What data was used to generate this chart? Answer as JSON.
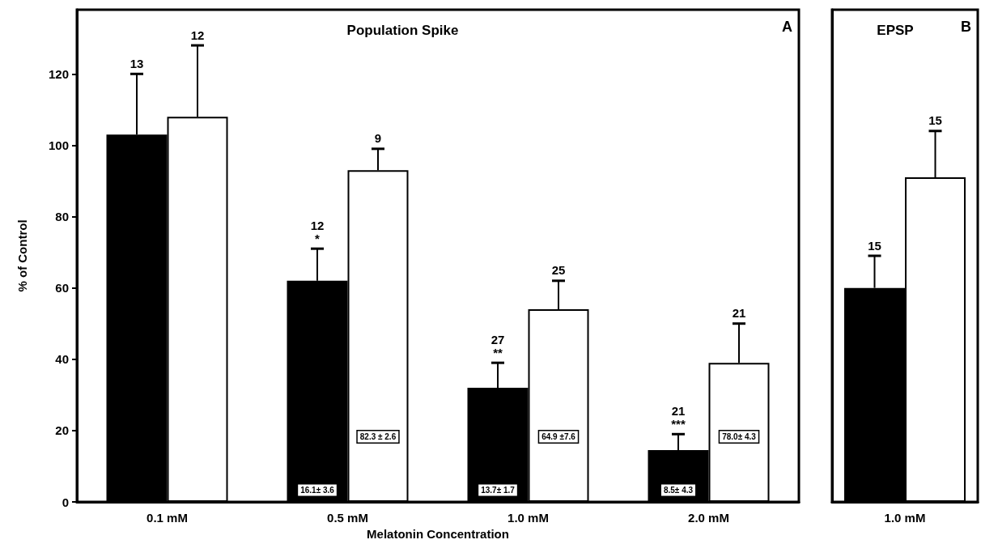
{
  "chart_data": [
    {
      "type": "bar",
      "title": "Population Spike",
      "xlabel": "Melatonin Concentration",
      "ylabel": "% of Control",
      "categories": [
        "0.1 mM",
        "0.5 mM",
        "1.0 mM",
        "2.0 mM"
      ],
      "series": [
        {
          "color": "#000000",
          "values": [
            103,
            62,
            32,
            14.5
          ],
          "errors": [
            [
              103,
              120
            ],
            [
              62,
              71
            ],
            [
              32,
              39
            ],
            [
              14.5,
              19
            ]
          ]
        },
        {
          "color": "#ffffff",
          "values": [
            108,
            93,
            54,
            39
          ],
          "errors": [
            [
              108,
              128
            ],
            [
              93,
              99
            ],
            [
              54,
              62
            ],
            [
              39,
              50
            ]
          ]
        }
      ],
      "ylim": [
        0,
        138
      ],
      "yticks": [
        0,
        20,
        40,
        60,
        80,
        100,
        120
      ],
      "annotations": [
        "A",
        "13",
        "12",
        "12\n*",
        "9",
        "27\n**",
        "25",
        "21\n***",
        "21",
        {
          "text": "16.1± 3.6",
          "x": "0.5 mM",
          "y": 1
        },
        {
          "text": "82.3 ± 2.6",
          "x": "0.5 mM",
          "y": 16
        },
        {
          "text": "13.7± 1.7",
          "x": "1.0 mM",
          "y": 1
        },
        {
          "text": "64.9 ±7.6",
          "x": "1.0 mM",
          "y": 16
        },
        {
          "text": "8.5± 4.3",
          "x": "2.0 mM",
          "y": 1
        },
        {
          "text": "78.0± 4.3",
          "x": "2.0 mM",
          "y": 16
        }
      ]
    },
    {
      "type": "bar",
      "title": "EPSP",
      "categories": [
        "1.0 mM"
      ],
      "series": [
        {
          "color": "#000000",
          "values": [
            60
          ],
          "errors": [
            [
              60,
              69
            ]
          ]
        },
        {
          "color": "#ffffff",
          "values": [
            91
          ],
          "errors": [
            [
              91,
              104
            ]
          ]
        }
      ],
      "ylim": [
        0,
        138
      ],
      "yticks": [
        0,
        20,
        40,
        60,
        80,
        100,
        120
      ],
      "tick_labels": "x",
      "annotations": [
        "B",
        "15",
        "15"
      ]
    }
  ]
}
